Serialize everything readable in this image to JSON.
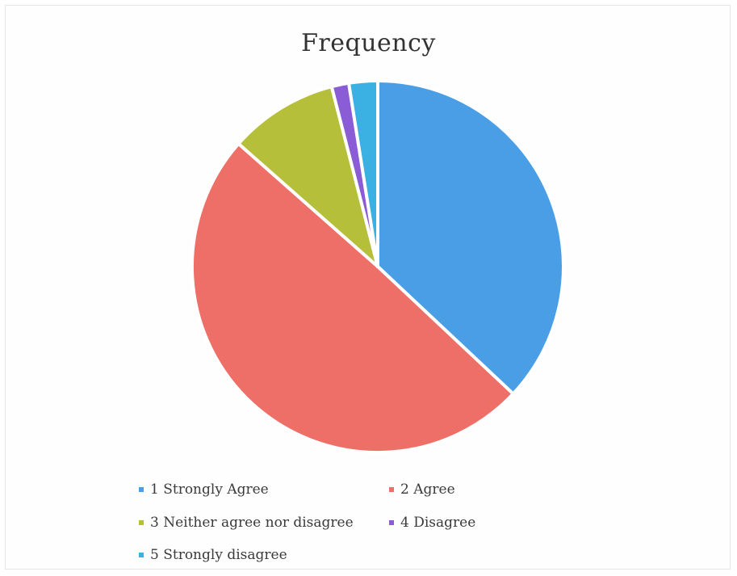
{
  "chart_data": {
    "type": "pie",
    "title": "Frequency",
    "categories": [
      "1 Strongly Agree",
      "2 Agree",
      "3 Neither agree nor disagree",
      "4 Disagree",
      "5 Strongly disagree"
    ],
    "values": [
      37,
      49.5,
      9.5,
      1.5,
      2.5
    ],
    "colors": [
      "#4a9ee6",
      "#ee6f67",
      "#b5bf3a",
      "#8a5cd6",
      "#3bb0e3"
    ],
    "start_angle_deg": 0,
    "direction": "clockwise",
    "legend_position": "bottom"
  }
}
